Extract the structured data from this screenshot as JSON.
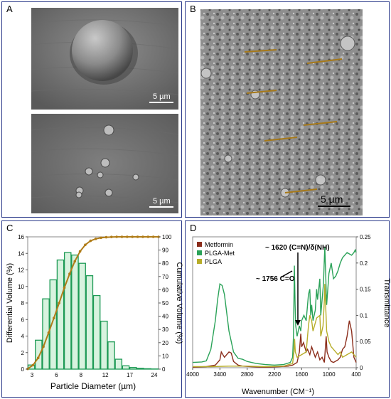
{
  "panels": {
    "a": {
      "label": "A",
      "scale_top": "5 µm",
      "scale_bottom": "5 µm"
    },
    "b": {
      "label": "B",
      "scale": "5 µm"
    },
    "c": {
      "label": "C"
    },
    "d": {
      "label": "D"
    }
  },
  "colors": {
    "border": "#2b3a8a",
    "bar_edge": "#1d9a55",
    "bar_fill": "#d8f3df",
    "cumulative": "#b07c18",
    "metformin": "#8b2d1b",
    "plga_met": "#2aa258",
    "plga": "#b7ad2a"
  },
  "chart_data": [
    {
      "type": "bar",
      "xlabel": "Particle Diameter (µm)",
      "ylabel": "Differential Volume (%)",
      "y2label": "Cumulative Volume (%)",
      "ylim": [
        0,
        16
      ],
      "y2lim": [
        0,
        100
      ],
      "yticks": [
        0,
        2,
        4,
        6,
        8,
        10,
        12,
        14,
        16
      ],
      "y2ticks": [
        0,
        10,
        20,
        30,
        40,
        50,
        60,
        70,
        80,
        90,
        100
      ],
      "xtick_labels": [
        "3",
        "6",
        "8",
        "12",
        "17",
        "24"
      ],
      "grid": false,
      "series": [
        {
          "kind": "bar",
          "values": [
            0.5,
            3.5,
            8.5,
            10.8,
            13.2,
            14.1,
            13.8,
            12.8,
            11.3,
            8.9,
            5.8,
            3.3,
            1.2,
            0.4,
            0.2,
            0.1,
            0.05,
            0.02
          ]
        },
        {
          "kind": "line",
          "axis": "right",
          "values": [
            0.2,
            3,
            8.5,
            17,
            27.5,
            38.6,
            50,
            61.5,
            72,
            81.5,
            89,
            94,
            97,
            98.5,
            99.3,
            99.7,
            99.9,
            100,
            100,
            100,
            100,
            100,
            100,
            100,
            100,
            100
          ]
        }
      ]
    },
    {
      "type": "line",
      "xlabel": "Wavenumber (CM⁻¹)",
      "ylabel": "Transmittance",
      "xlim": [
        4000,
        400
      ],
      "ylim": [
        0,
        0.25
      ],
      "xticks": [
        4000,
        3400,
        2800,
        2200,
        1600,
        1000,
        400
      ],
      "yticks": [
        0,
        0.05,
        0.1,
        0.15,
        0.2,
        0.25
      ],
      "legend": "top-left",
      "annotations": [
        "~ 1620 (C=N)/δ(NH)",
        "~ 1756 C=O"
      ],
      "series": [
        {
          "name": "Metformin",
          "x": [
            4000,
            3700,
            3500,
            3400,
            3370,
            3300,
            3200,
            3150,
            3100,
            3000,
            2900,
            2700,
            2400,
            2100,
            1900,
            1800,
            1700,
            1650,
            1620,
            1600,
            1560,
            1500,
            1470,
            1420,
            1380,
            1300,
            1250,
            1200,
            1150,
            1100,
            1060,
            1040,
            1000,
            950,
            900,
            800,
            750,
            700,
            650,
            600,
            550,
            500,
            450,
            400
          ],
          "y": [
            0.001,
            0.002,
            0.005,
            0.015,
            0.03,
            0.02,
            0.03,
            0.028,
            0.012,
            0.005,
            0.003,
            0.002,
            0.001,
            0.002,
            0.003,
            0.005,
            0.01,
            0.03,
            0.065,
            0.04,
            0.048,
            0.03,
            0.035,
            0.025,
            0.04,
            0.02,
            0.03,
            0.015,
            0.02,
            0.01,
            0.06,
            0.03,
            0.02,
            0.012,
            0.01,
            0.015,
            0.02,
            0.035,
            0.04,
            0.06,
            0.09,
            0.07,
            0.02,
            0.01
          ]
        },
        {
          "name": "PLGA-Met",
          "x": [
            4000,
            3800,
            3700,
            3600,
            3500,
            3450,
            3400,
            3350,
            3300,
            3200,
            3100,
            3000,
            2900,
            2800,
            2600,
            2400,
            2200,
            2000,
            1850,
            1800,
            1780,
            1760,
            1745,
            1730,
            1700,
            1650,
            1620,
            1600,
            1550,
            1500,
            1450,
            1420,
            1400,
            1380,
            1350,
            1300,
            1270,
            1250,
            1200,
            1180,
            1150,
            1120,
            1100,
            1090,
            1050,
            1000,
            950,
            900,
            850,
            800,
            750,
            700,
            600,
            500,
            450,
            420,
            400
          ],
          "y": [
            0.01,
            0.011,
            0.013,
            0.035,
            0.09,
            0.13,
            0.16,
            0.157,
            0.14,
            0.07,
            0.03,
            0.018,
            0.016,
            0.012,
            0.008,
            0.006,
            0.005,
            0.006,
            0.01,
            0.02,
            0.06,
            0.195,
            0.12,
            0.08,
            0.06,
            0.08,
            0.07,
            0.09,
            0.1,
            0.09,
            0.14,
            0.15,
            0.1,
            0.12,
            0.09,
            0.11,
            0.15,
            0.13,
            0.17,
            0.1,
            0.13,
            0.16,
            0.21,
            0.23,
            0.12,
            0.18,
            0.2,
            0.17,
            0.175,
            0.185,
            0.2,
            0.21,
            0.22,
            0.215,
            0.22,
            0.225,
            0.22
          ]
        },
        {
          "name": "PLGA",
          "x": [
            4000,
            3600,
            3200,
            2800,
            2400,
            2000,
            1800,
            1770,
            1755,
            1740,
            1700,
            1600,
            1500,
            1450,
            1420,
            1380,
            1350,
            1270,
            1200,
            1180,
            1130,
            1100,
            1090,
            1050,
            1000,
            950,
            900,
            850,
            800,
            750,
            700,
            600,
            500,
            400
          ],
          "y": [
            0.002,
            0.002,
            0.003,
            0.003,
            0.002,
            0.003,
            0.008,
            0.03,
            0.055,
            0.03,
            0.02,
            0.025,
            0.03,
            0.08,
            0.1,
            0.09,
            0.07,
            0.095,
            0.1,
            0.06,
            0.08,
            0.13,
            0.16,
            0.07,
            0.05,
            0.04,
            0.035,
            0.03,
            0.025,
            0.03,
            0.02,
            0.025,
            0.03,
            0.02
          ]
        }
      ]
    }
  ]
}
